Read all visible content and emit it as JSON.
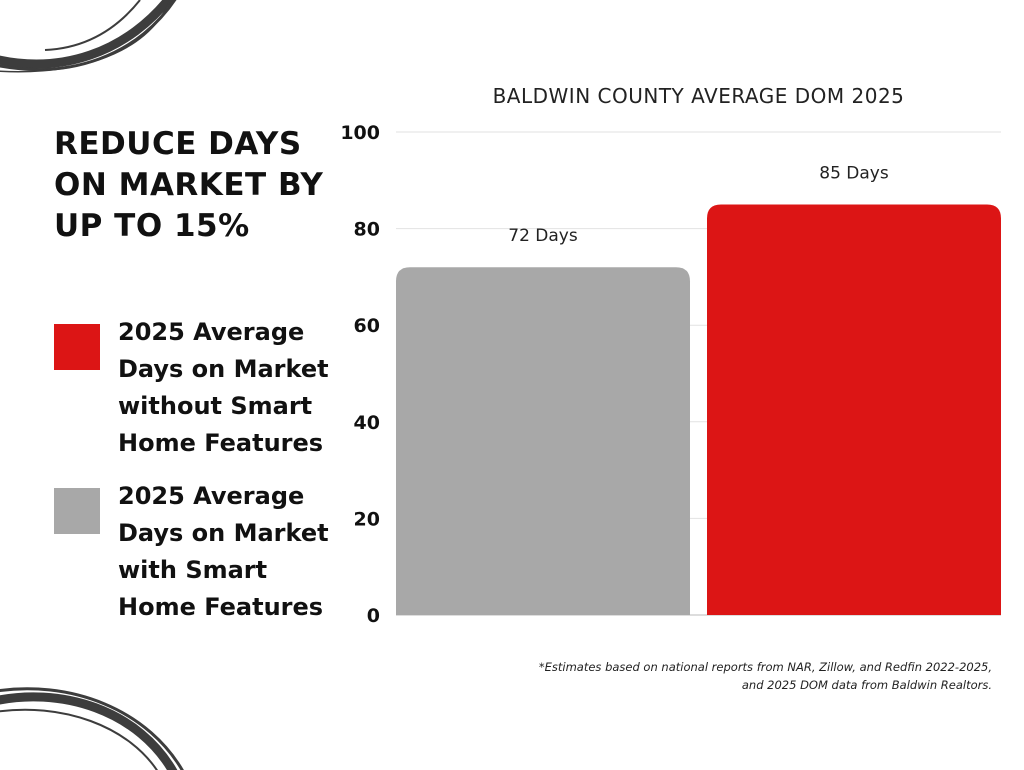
{
  "headline": "REDUCE DAYS ON MARKET BY UP TO 15%",
  "legend": [
    {
      "label": "2025 Average Days on Market without Smart Home Features",
      "color": "#dc1515"
    },
    {
      "label": "2025 Average Days on Market with Smart Home Features",
      "color": "#a8a8a8"
    }
  ],
  "footnote": "*Estimates based on national reports from NAR, Zillow, and Redfin 2022-2025, and 2025 DOM data from Baldwin Realtors.",
  "chart_data": {
    "type": "bar",
    "title": "BALDWIN COUNTY AVERAGE DOM 2025",
    "xlabel": "",
    "ylabel": "",
    "ylim": [
      0,
      100
    ],
    "yticks": [
      0,
      20,
      40,
      60,
      80,
      100
    ],
    "grid": true,
    "legend_position": "left",
    "bars": [
      {
        "series": "2025 Average Days on Market with Smart Home Features",
        "value": 72,
        "label": "72 Days",
        "color": "#a8a8a8"
      },
      {
        "series": "2025 Average Days on Market without Smart Home Features",
        "value": 85,
        "label": "85 Days",
        "color": "#dc1515"
      }
    ]
  }
}
